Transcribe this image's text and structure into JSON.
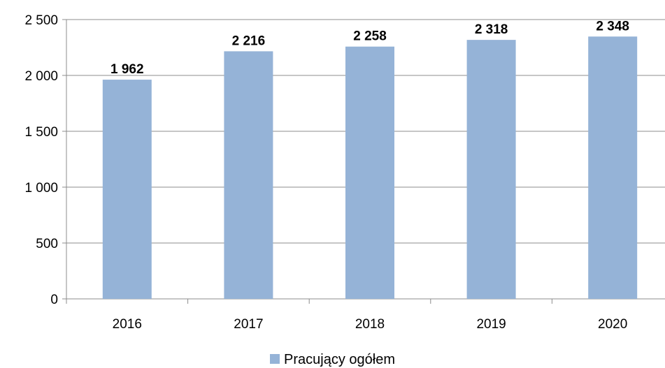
{
  "chart_data": {
    "type": "bar",
    "categories": [
      "2016",
      "2017",
      "2018",
      "2019",
      "2020"
    ],
    "series": [
      {
        "name": "Pracujący ogółem",
        "values": [
          1962,
          2216,
          2258,
          2318,
          2348
        ],
        "value_labels": [
          "1 962",
          "2 216",
          "2 258",
          "2 318",
          "2 348"
        ],
        "color": "#95b3d7"
      }
    ],
    "ylim": [
      0,
      2500
    ],
    "yticks": [
      0,
      500,
      1000,
      1500,
      2000,
      2500
    ],
    "ytick_labels": [
      "0",
      "500",
      "1 000",
      "1 500",
      "2 000",
      "2 500"
    ],
    "grid": true,
    "legend": "bottom",
    "title": "",
    "xlabel": "",
    "ylabel": ""
  }
}
